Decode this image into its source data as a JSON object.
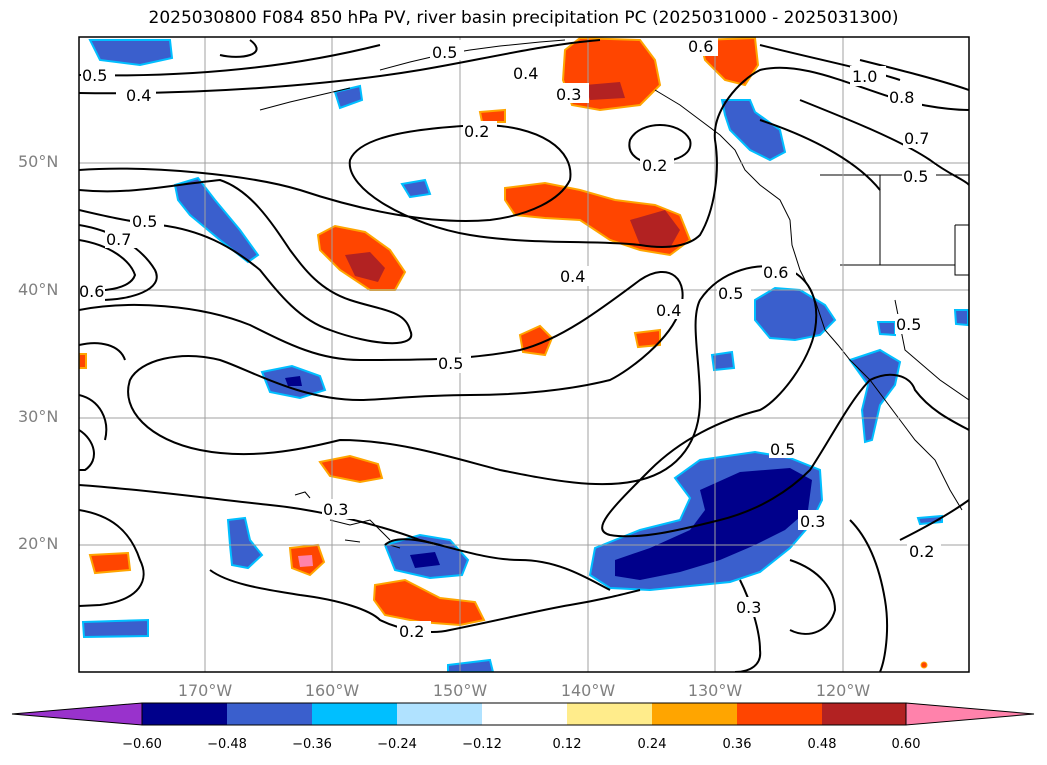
{
  "title": "2025030800 F084 850 hPa PV, river basin precipitation PC (2025031000 - 2025031300)",
  "lat_labels": [
    "50°N",
    "40°N",
    "30°N",
    "20°N"
  ],
  "lon_labels": [
    "170°W",
    "160°W",
    "150°W",
    "140°W",
    "130°W",
    "120°W"
  ],
  "colorbar": {
    "ticks": [
      "−0.60",
      "−0.48",
      "−0.36",
      "−0.24",
      "−0.12",
      "0.12",
      "0.24",
      "0.36",
      "0.48",
      "0.60"
    ],
    "colors": [
      "#9932cc",
      "#00008b",
      "#3a5fcd",
      "#00bfff",
      "#b0e2ff",
      "#ffffff",
      "#ffec8b",
      "#ffa500",
      "#ff4500",
      "#b22222",
      "#ff82ab"
    ]
  },
  "contour_labels": [
    "0.5",
    "0.5",
    "0.4",
    "0.3",
    "0.6",
    "1.0",
    "0.8",
    "0.7",
    "0.5",
    "0.2",
    "0.2",
    "0.5",
    "0.7",
    "0.6",
    "0.4",
    "0.4",
    "0.5",
    "0.6",
    "0.5",
    "0.5",
    "0.5",
    "0.3",
    "0.3",
    "0.2",
    "0.3",
    "0.2",
    "0.4"
  ]
}
